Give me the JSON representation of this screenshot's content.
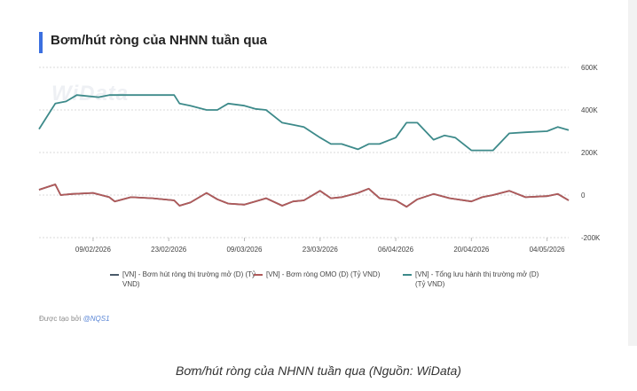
{
  "title": "Bơm/hút ròng của NHNN tuần qua",
  "watermark": "WiData",
  "credit": {
    "prefix": "Được tạo bởi",
    "author": "@NQS1"
  },
  "caption": "Bơm/hút ròng của NHNN tuần qua (Nguồn: WiData)",
  "colors": {
    "series1": "#4a5a6a",
    "series2": "#b05a5a",
    "series3": "#3d8a8a",
    "accent": "#3b6fe0"
  },
  "chart_data": {
    "type": "line",
    "title": "Bơm/hút ròng của NHNN tuần qua",
    "x_range": [
      "2026-01-30",
      "2026-05-08"
    ],
    "y_ticks": [
      {
        "v": 600000,
        "label": "600K"
      },
      {
        "v": 400000,
        "label": "400K"
      },
      {
        "v": 200000,
        "label": "200K"
      },
      {
        "v": 0,
        "label": "0"
      },
      {
        "v": -200000,
        "label": "-200K"
      }
    ],
    "ylim": [
      -200000,
      600000
    ],
    "x_ticks": [
      {
        "date": "2026-02-09",
        "label": "09/02/2026"
      },
      {
        "date": "2026-02-23",
        "label": "23/02/2026"
      },
      {
        "date": "2026-03-09",
        "label": "09/03/2026"
      },
      {
        "date": "2026-03-23",
        "label": "23/03/2026"
      },
      {
        "date": "2026-04-06",
        "label": "06/04/2026"
      },
      {
        "date": "2026-04-20",
        "label": "20/04/2026"
      },
      {
        "date": "2026-05-04",
        "label": "04/05/2026"
      }
    ],
    "grid": "horizontal",
    "legend_position": "bottom",
    "series": [
      {
        "name": "[VN] - Bơm hút ròng thị trường mở (D) (Tỷ VND)",
        "color": "#4a5a6a",
        "points": [
          [
            "2026-01-30",
            25000
          ],
          [
            "2026-02-02",
            50000
          ],
          [
            "2026-02-03",
            0
          ],
          [
            "2026-02-05",
            5000
          ],
          [
            "2026-02-09",
            10000
          ],
          [
            "2026-02-12",
            -10000
          ],
          [
            "2026-02-13",
            -30000
          ],
          [
            "2026-02-16",
            -10000
          ],
          [
            "2026-02-20",
            -15000
          ],
          [
            "2026-02-24",
            -25000
          ],
          [
            "2026-02-25",
            -50000
          ],
          [
            "2026-02-27",
            -35000
          ],
          [
            "2026-03-02",
            10000
          ],
          [
            "2026-03-04",
            -20000
          ],
          [
            "2026-03-06",
            -40000
          ],
          [
            "2026-03-09",
            -45000
          ],
          [
            "2026-03-11",
            -30000
          ],
          [
            "2026-03-13",
            -15000
          ],
          [
            "2026-03-16",
            -50000
          ],
          [
            "2026-03-18",
            -30000
          ],
          [
            "2026-03-20",
            -25000
          ],
          [
            "2026-03-23",
            20000
          ],
          [
            "2026-03-25",
            -15000
          ],
          [
            "2026-03-27",
            -10000
          ],
          [
            "2026-03-30",
            10000
          ],
          [
            "2026-04-01",
            30000
          ],
          [
            "2026-04-03",
            -15000
          ],
          [
            "2026-04-06",
            -25000
          ],
          [
            "2026-04-08",
            -55000
          ],
          [
            "2026-04-10",
            -20000
          ],
          [
            "2026-04-13",
            5000
          ],
          [
            "2026-04-16",
            -15000
          ],
          [
            "2026-04-20",
            -30000
          ],
          [
            "2026-04-22",
            -10000
          ],
          [
            "2026-04-24",
            0
          ],
          [
            "2026-04-27",
            20000
          ],
          [
            "2026-04-30",
            -10000
          ],
          [
            "2026-05-04",
            -5000
          ],
          [
            "2026-05-06",
            5000
          ],
          [
            "2026-05-08",
            -25000
          ]
        ]
      },
      {
        "name": "[VN] - Bơm ròng OMO (D) (Tỷ VND)",
        "color": "#b05a5a",
        "points": [
          [
            "2026-01-30",
            25000
          ],
          [
            "2026-02-02",
            50000
          ],
          [
            "2026-02-03",
            0
          ],
          [
            "2026-02-05",
            5000
          ],
          [
            "2026-02-09",
            10000
          ],
          [
            "2026-02-12",
            -10000
          ],
          [
            "2026-02-13",
            -30000
          ],
          [
            "2026-02-16",
            -10000
          ],
          [
            "2026-02-20",
            -15000
          ],
          [
            "2026-02-24",
            -25000
          ],
          [
            "2026-02-25",
            -50000
          ],
          [
            "2026-02-27",
            -35000
          ],
          [
            "2026-03-02",
            10000
          ],
          [
            "2026-03-04",
            -20000
          ],
          [
            "2026-03-06",
            -40000
          ],
          [
            "2026-03-09",
            -45000
          ],
          [
            "2026-03-11",
            -30000
          ],
          [
            "2026-03-13",
            -15000
          ],
          [
            "2026-03-16",
            -50000
          ],
          [
            "2026-03-18",
            -30000
          ],
          [
            "2026-03-20",
            -25000
          ],
          [
            "2026-03-23",
            20000
          ],
          [
            "2026-03-25",
            -15000
          ],
          [
            "2026-03-27",
            -10000
          ],
          [
            "2026-03-30",
            10000
          ],
          [
            "2026-04-01",
            30000
          ],
          [
            "2026-04-03",
            -15000
          ],
          [
            "2026-04-06",
            -25000
          ],
          [
            "2026-04-08",
            -55000
          ],
          [
            "2026-04-10",
            -20000
          ],
          [
            "2026-04-13",
            5000
          ],
          [
            "2026-04-16",
            -15000
          ],
          [
            "2026-04-20",
            -30000
          ],
          [
            "2026-04-22",
            -10000
          ],
          [
            "2026-04-24",
            0
          ],
          [
            "2026-04-27",
            20000
          ],
          [
            "2026-04-30",
            -10000
          ],
          [
            "2026-05-04",
            -5000
          ],
          [
            "2026-05-06",
            5000
          ],
          [
            "2026-05-08",
            -25000
          ]
        ]
      },
      {
        "name": "[VN] - Tổng lưu hành thị trường mở (D) (Tỷ VND)",
        "color": "#3d8a8a",
        "points": [
          [
            "2026-01-30",
            310000
          ],
          [
            "2026-02-02",
            430000
          ],
          [
            "2026-02-04",
            440000
          ],
          [
            "2026-02-06",
            470000
          ],
          [
            "2026-02-10",
            460000
          ],
          [
            "2026-02-12",
            470000
          ],
          [
            "2026-02-17",
            470000
          ],
          [
            "2026-02-20",
            470000
          ],
          [
            "2026-02-24",
            470000
          ],
          [
            "2026-02-25",
            430000
          ],
          [
            "2026-02-27",
            420000
          ],
          [
            "2026-03-02",
            400000
          ],
          [
            "2026-03-04",
            400000
          ],
          [
            "2026-03-06",
            430000
          ],
          [
            "2026-03-09",
            420000
          ],
          [
            "2026-03-11",
            405000
          ],
          [
            "2026-03-13",
            400000
          ],
          [
            "2026-03-16",
            340000
          ],
          [
            "2026-03-18",
            330000
          ],
          [
            "2026-03-20",
            320000
          ],
          [
            "2026-03-23",
            270000
          ],
          [
            "2026-03-25",
            240000
          ],
          [
            "2026-03-27",
            240000
          ],
          [
            "2026-03-30",
            215000
          ],
          [
            "2026-04-01",
            240000
          ],
          [
            "2026-04-03",
            240000
          ],
          [
            "2026-04-06",
            270000
          ],
          [
            "2026-04-08",
            340000
          ],
          [
            "2026-04-10",
            340000
          ],
          [
            "2026-04-13",
            260000
          ],
          [
            "2026-04-15",
            280000
          ],
          [
            "2026-04-17",
            270000
          ],
          [
            "2026-04-20",
            210000
          ],
          [
            "2026-04-24",
            210000
          ],
          [
            "2026-04-27",
            290000
          ],
          [
            "2026-04-30",
            295000
          ],
          [
            "2026-05-04",
            300000
          ],
          [
            "2026-05-06",
            320000
          ],
          [
            "2026-05-08",
            305000
          ]
        ]
      }
    ]
  }
}
